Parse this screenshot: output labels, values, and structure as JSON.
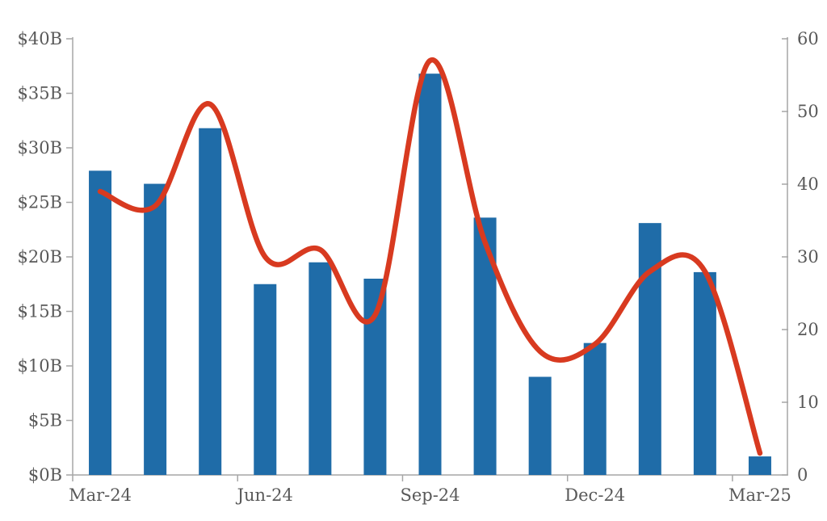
{
  "chart_data": {
    "type": "combo",
    "title": "",
    "legend": "none",
    "grid": false,
    "categories": [
      "Mar-24",
      "Apr-24",
      "May-24",
      "Jun-24",
      "Jul-24",
      "Aug-24",
      "Sep-24",
      "Oct-24",
      "Nov-24",
      "Dec-24",
      "Jan-25",
      "Feb-25",
      "Mar-25"
    ],
    "x_axis": {
      "tick_labels": [
        "Mar-24",
        "Jun-24",
        "Sep-24",
        "Dec-24",
        "Mar-25"
      ],
      "label_category_indexes": [
        0,
        3,
        6,
        9,
        12
      ],
      "boundary_tick_interval": 3
    },
    "series": [
      {
        "name": "bar-series",
        "type": "bar",
        "axis": "left",
        "color": "#1F6CA8",
        "values": [
          27.9,
          26.7,
          31.8,
          17.5,
          19.5,
          18.0,
          36.8,
          23.6,
          9.0,
          12.1,
          23.1,
          18.6,
          1.7
        ]
      },
      {
        "name": "line-series",
        "type": "line",
        "smooth": true,
        "axis": "right",
        "color": "#D83A20",
        "values": [
          39,
          37,
          51,
          30,
          31,
          22,
          57,
          32,
          17,
          18,
          28,
          28,
          3
        ]
      }
    ],
    "left_axis": {
      "min": 0,
      "max": 40,
      "step": 5,
      "tick_labels": [
        "$0B",
        "$5B",
        "$10B",
        "$15B",
        "$20B",
        "$25B",
        "$30B",
        "$35B",
        "$40B"
      ]
    },
    "right_axis": {
      "min": 0,
      "max": 60,
      "step": 10,
      "tick_labels": [
        "0",
        "10",
        "20",
        "30",
        "40",
        "50",
        "60"
      ]
    }
  },
  "colors": {
    "background": "#FFFFFF",
    "bar": "#1F6CA8",
    "line": "#D83A20",
    "axis_line": "#A6A6A6",
    "tick_mark": "#A6A6A6",
    "label_text": "#595959"
  }
}
